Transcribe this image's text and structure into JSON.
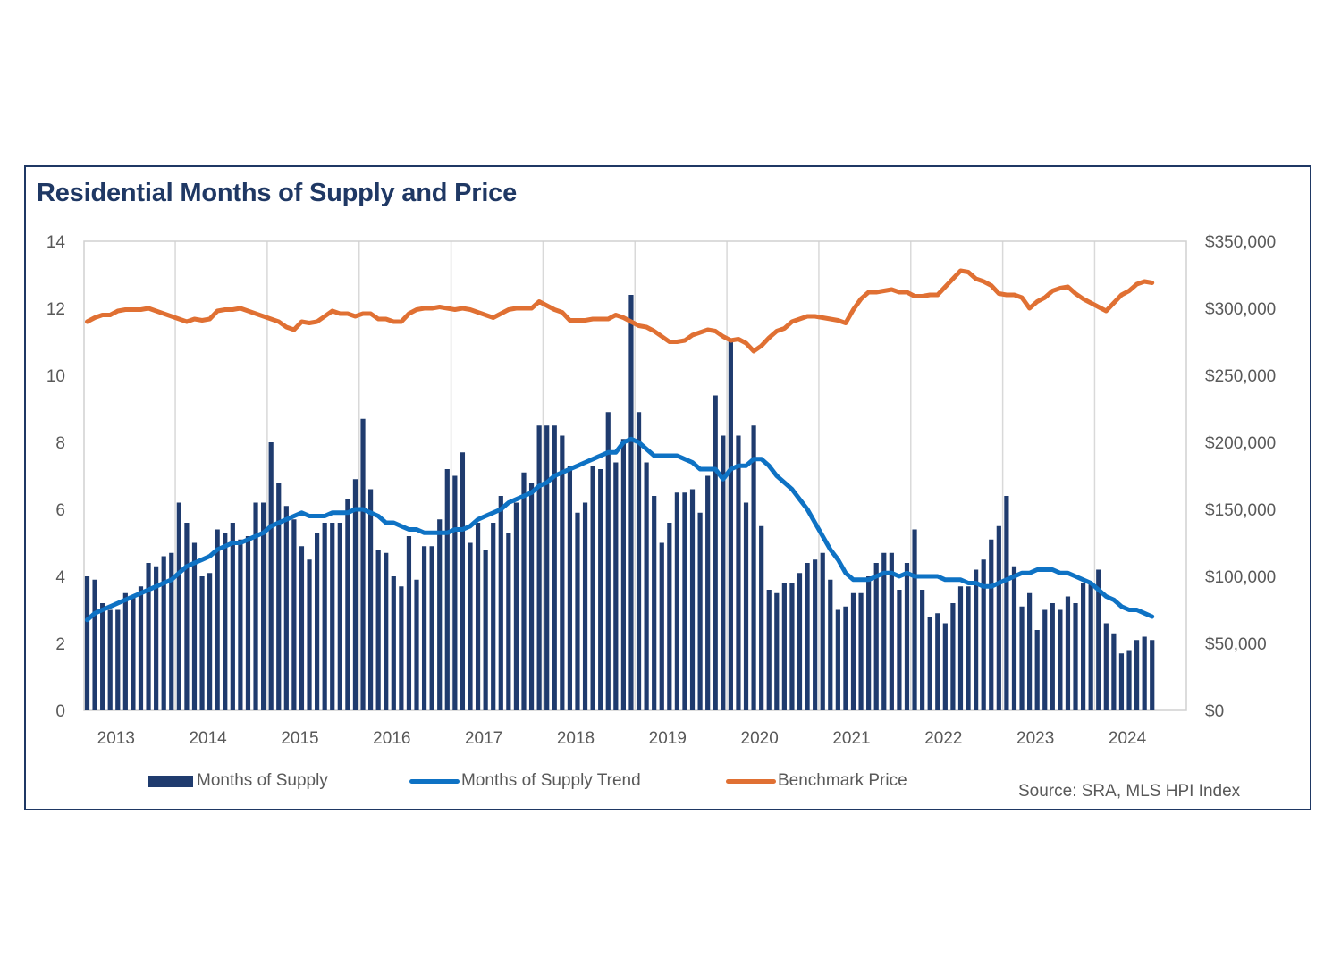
{
  "chart_data": {
    "type": "bar",
    "title": "Residential Months of Supply and Price",
    "xlabel": "",
    "ylabel": "",
    "y2label": "",
    "ylim": [
      0,
      14
    ],
    "y2lim": [
      0,
      350000
    ],
    "yticks": [
      "0",
      "2",
      "4",
      "6",
      "8",
      "10",
      "12",
      "14"
    ],
    "y2ticks": [
      "$0",
      "$50,000",
      "$100,000",
      "$150,000",
      "$200,000",
      "$250,000",
      "$300,000",
      "$350,000"
    ],
    "x_tick_labels": [
      {
        "label": "2013",
        "index": 4
      },
      {
        "label": "2014",
        "index": 16
      },
      {
        "label": "2015",
        "index": 28
      },
      {
        "label": "2016",
        "index": 40
      },
      {
        "label": "2017",
        "index": 52
      },
      {
        "label": "2018",
        "index": 64
      },
      {
        "label": "2019",
        "index": 76
      },
      {
        "label": "2020",
        "index": 88
      },
      {
        "label": "2021",
        "index": 100
      },
      {
        "label": "2022",
        "index": 112
      },
      {
        "label": "2023",
        "index": 124
      },
      {
        "label": "2024",
        "index": 136
      }
    ],
    "grid": "vertical year dividers",
    "legend_position": "bottom",
    "series": [
      {
        "name": "Months of Supply",
        "type": "bar",
        "axis": "left",
        "color": "#1f3b6e",
        "values": [
          4.0,
          3.9,
          3.2,
          3.0,
          3.0,
          3.5,
          3.4,
          3.7,
          4.4,
          4.3,
          4.6,
          4.7,
          6.2,
          5.6,
          5.0,
          4.0,
          4.1,
          5.4,
          5.3,
          5.6,
          5.1,
          5.2,
          6.2,
          6.2,
          8.0,
          6.8,
          6.1,
          5.7,
          4.9,
          4.5,
          5.3,
          5.6,
          5.6,
          5.6,
          6.3,
          6.9,
          8.7,
          6.6,
          4.8,
          4.7,
          4.0,
          3.7,
          5.2,
          3.9,
          4.9,
          4.9,
          5.7,
          7.2,
          7.0,
          7.7,
          5.0,
          5.6,
          4.8,
          5.6,
          6.4,
          5.3,
          6.2,
          7.1,
          6.8,
          8.5,
          8.5,
          8.5,
          8.2,
          7.3,
          5.9,
          6.2,
          7.3,
          7.2,
          8.9,
          7.4,
          8.1,
          12.4,
          8.9,
          7.4,
          6.4,
          5.0,
          5.6,
          6.5,
          6.5,
          6.6,
          5.9,
          7.0,
          9.4,
          8.2,
          11.1,
          8.2,
          6.2,
          8.5,
          5.5,
          3.6,
          3.5,
          3.8,
          3.8,
          4.1,
          4.4,
          4.5,
          4.7,
          3.9,
          3.0,
          3.1,
          3.5,
          3.5,
          4.0,
          4.4,
          4.7,
          4.7,
          3.6,
          4.4,
          5.4,
          3.6,
          2.8,
          2.9,
          2.6,
          3.2,
          3.7,
          3.7,
          4.2,
          4.5,
          5.1,
          5.5,
          6.4,
          4.3,
          3.1,
          3.5,
          2.4,
          3.0,
          3.2,
          3.0,
          3.4,
          3.2,
          3.8,
          3.8,
          4.2,
          2.6,
          2.3,
          1.7,
          1.8,
          2.1,
          2.2,
          2.1
        ]
      },
      {
        "name": "Months of Supply Trend",
        "type": "line",
        "axis": "left",
        "color": "#0e72c4",
        "values": [
          2.7,
          2.9,
          3.0,
          3.1,
          3.2,
          3.3,
          3.4,
          3.5,
          3.6,
          3.7,
          3.8,
          3.9,
          4.1,
          4.3,
          4.4,
          4.5,
          4.6,
          4.8,
          4.9,
          5.0,
          5.0,
          5.1,
          5.2,
          5.3,
          5.5,
          5.6,
          5.7,
          5.8,
          5.9,
          5.8,
          5.8,
          5.8,
          5.9,
          5.9,
          5.9,
          6.0,
          6.0,
          5.9,
          5.8,
          5.6,
          5.6,
          5.5,
          5.4,
          5.4,
          5.3,
          5.3,
          5.3,
          5.3,
          5.4,
          5.4,
          5.5,
          5.7,
          5.8,
          5.9,
          6.0,
          6.2,
          6.3,
          6.4,
          6.5,
          6.7,
          6.8,
          7.0,
          7.1,
          7.2,
          7.3,
          7.4,
          7.5,
          7.6,
          7.7,
          7.7,
          8.0,
          8.1,
          8.0,
          7.8,
          7.6,
          7.6,
          7.6,
          7.6,
          7.5,
          7.4,
          7.2,
          7.2,
          7.2,
          6.9,
          7.2,
          7.3,
          7.3,
          7.5,
          7.5,
          7.3,
          7.0,
          6.8,
          6.6,
          6.3,
          6.0,
          5.6,
          5.2,
          4.8,
          4.5,
          4.1,
          3.9,
          3.9,
          3.9,
          4.0,
          4.1,
          4.1,
          4.0,
          4.1,
          4.0,
          4.0,
          4.0,
          4.0,
          3.9,
          3.9,
          3.9,
          3.8,
          3.8,
          3.7,
          3.7,
          3.8,
          3.9,
          4.0,
          4.1,
          4.1,
          4.2,
          4.2,
          4.2,
          4.1,
          4.1,
          4.0,
          3.9,
          3.8,
          3.6,
          3.4,
          3.3,
          3.1,
          3.0,
          3.0,
          2.9,
          2.8
        ]
      },
      {
        "name": "Benchmark Price",
        "type": "line",
        "axis": "right",
        "color": "#e07033",
        "values": [
          290000,
          293000,
          295000,
          295000,
          298000,
          299000,
          299000,
          299000,
          300000,
          298000,
          296000,
          294000,
          292000,
          290000,
          292000,
          291000,
          292000,
          298000,
          299000,
          299000,
          300000,
          298000,
          296000,
          294000,
          292000,
          290000,
          286000,
          284000,
          290000,
          289000,
          290000,
          294000,
          298000,
          296000,
          296000,
          294000,
          296000,
          296000,
          292000,
          292000,
          290000,
          290000,
          296000,
          299000,
          300000,
          300000,
          301000,
          300000,
          299000,
          300000,
          299000,
          297000,
          295000,
          293000,
          296000,
          299000,
          300000,
          300000,
          300000,
          305000,
          302000,
          299000,
          297000,
          291000,
          291000,
          291000,
          292000,
          292000,
          292000,
          295000,
          293000,
          290000,
          287000,
          286000,
          283000,
          279000,
          275000,
          275000,
          276000,
          280000,
          282000,
          284000,
          283000,
          279000,
          276000,
          277000,
          274000,
          268000,
          272000,
          278000,
          283000,
          285000,
          290000,
          292000,
          294000,
          294000,
          293000,
          292000,
          291000,
          289000,
          299000,
          307000,
          312000,
          312000,
          313000,
          314000,
          312000,
          312000,
          309000,
          309000,
          310000,
          310000,
          316000,
          322000,
          328000,
          327000,
          322000,
          320000,
          317000,
          311000,
          310000,
          310000,
          308000,
          300000,
          305000,
          308000,
          313000,
          315000,
          316000,
          311000,
          307000,
          304000,
          301000,
          298000,
          304000,
          310000,
          313000,
          318000,
          320000,
          319000
        ]
      }
    ]
  },
  "legend": {
    "items": [
      {
        "label": "Months of Supply",
        "color": "#1f3b6e"
      },
      {
        "label": "Months of Supply Trend",
        "color": "#0e72c4"
      },
      {
        "label": "Benchmark Price",
        "color": "#e07033"
      }
    ]
  },
  "source_text": "Source: SRA, MLS HPI Index"
}
